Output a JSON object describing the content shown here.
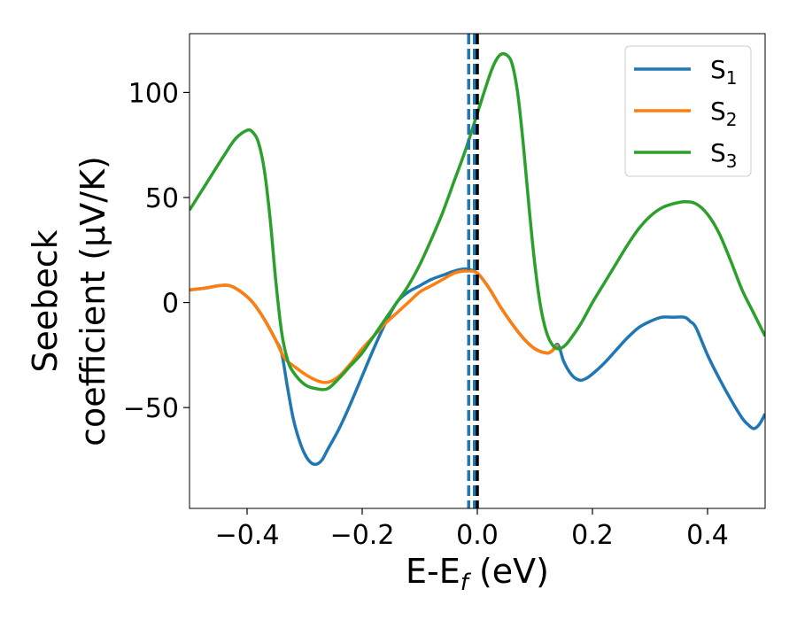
{
  "chart_data": {
    "type": "line",
    "title": "",
    "xlabel": {
      "main": "E-E",
      "sub": "f",
      "suffix": " (eV)"
    },
    "ylabel": {
      "line1": "Seebeck",
      "line2": "coefficient  (μV/K)"
    },
    "xlim": [
      -0.5,
      0.5
    ],
    "ylim": [
      -98,
      128
    ],
    "xticks": [
      -0.4,
      -0.2,
      0.0,
      0.2,
      0.4
    ],
    "xtick_labels": [
      "−0.4",
      "−0.2",
      "0.0",
      "0.2",
      "0.4"
    ],
    "yticks": [
      -50,
      0,
      50,
      100
    ],
    "ytick_labels": [
      "−50",
      "0",
      "50",
      "100"
    ],
    "grid": false,
    "legend_position": "top-right",
    "vlines": [
      {
        "x": -0.015,
        "style": "dashed",
        "color": "#1f77b4"
      },
      {
        "x": -0.005,
        "style": "dashed",
        "color": "#1f77b4"
      },
      {
        "x": 0.0,
        "style": "dashed",
        "color": "#000000"
      }
    ],
    "series": [
      {
        "name": "S",
        "sub": "1",
        "color": "#1f77b4",
        "x": [
          -0.5,
          -0.47,
          -0.45,
          -0.43,
          -0.41,
          -0.39,
          -0.37,
          -0.35,
          -0.34,
          -0.33,
          -0.32,
          -0.31,
          -0.3,
          -0.29,
          -0.28,
          -0.27,
          -0.26,
          -0.24,
          -0.22,
          -0.2,
          -0.18,
          -0.16,
          -0.14,
          -0.12,
          -0.1,
          -0.08,
          -0.06,
          -0.04,
          -0.02,
          0.0,
          0.02,
          0.04,
          0.06,
          0.08,
          0.1,
          0.12,
          0.13,
          0.14,
          0.15,
          0.16,
          0.17,
          0.18,
          0.19,
          0.2,
          0.22,
          0.24,
          0.26,
          0.28,
          0.3,
          0.32,
          0.34,
          0.36,
          0.37,
          0.38,
          0.4,
          0.42,
          0.44,
          0.46,
          0.47,
          0.48,
          0.49,
          0.5
        ],
        "y": [
          6,
          7,
          8,
          8,
          5,
          0,
          -8,
          -18,
          -24,
          -40,
          -55,
          -65,
          -72,
          -76,
          -77,
          -75,
          -70,
          -60,
          -48,
          -35,
          -22,
          -10,
          0,
          5,
          8,
          11,
          13,
          15,
          16,
          14,
          7,
          -2,
          -10,
          -17,
          -22,
          -24,
          -23,
          -20,
          -28,
          -33,
          -36,
          -37,
          -36,
          -34,
          -29,
          -23,
          -17,
          -12,
          -9,
          -7,
          -7,
          -7,
          -9,
          -12,
          -25,
          -36,
          -46,
          -55,
          -58,
          -60,
          -58,
          -53
        ]
      },
      {
        "name": "S",
        "sub": "2",
        "color": "#ff7f0e",
        "x": [
          -0.5,
          -0.47,
          -0.45,
          -0.43,
          -0.41,
          -0.39,
          -0.37,
          -0.35,
          -0.34,
          -0.33,
          -0.32,
          -0.3,
          -0.28,
          -0.26,
          -0.24,
          -0.22,
          -0.2,
          -0.18,
          -0.16,
          -0.14,
          -0.12,
          -0.1,
          -0.08,
          -0.06,
          -0.04,
          -0.02,
          0.0,
          0.02,
          0.04,
          0.06,
          0.08,
          0.1,
          0.12,
          0.13,
          0.14
        ],
        "y": [
          6,
          7,
          8,
          8,
          5,
          0,
          -8,
          -18,
          -24,
          -28,
          -30,
          -34,
          -37,
          -38,
          -35,
          -29,
          -22,
          -16,
          -10,
          -5,
          0,
          5,
          8,
          11,
          14,
          15,
          14,
          7,
          -2,
          -10,
          -17,
          -22,
          -24,
          -23,
          -20
        ]
      },
      {
        "name": "S",
        "sub": "3",
        "color": "#2ca02c",
        "x": [
          -0.5,
          -0.47,
          -0.44,
          -0.42,
          -0.4,
          -0.39,
          -0.38,
          -0.37,
          -0.36,
          -0.35,
          -0.34,
          -0.33,
          -0.32,
          -0.3,
          -0.28,
          -0.26,
          -0.24,
          -0.22,
          -0.2,
          -0.18,
          -0.16,
          -0.14,
          -0.12,
          -0.1,
          -0.08,
          -0.06,
          -0.04,
          -0.02,
          0.0,
          0.02,
          0.03,
          0.04,
          0.05,
          0.06,
          0.07,
          0.08,
          0.09,
          0.1,
          0.11,
          0.12,
          0.13,
          0.14,
          0.15,
          0.16,
          0.18,
          0.2,
          0.22,
          0.24,
          0.26,
          0.28,
          0.3,
          0.32,
          0.34,
          0.36,
          0.38,
          0.4,
          0.42,
          0.44,
          0.46,
          0.48,
          0.5
        ],
        "y": [
          44,
          57,
          70,
          78,
          82,
          81,
          76,
          63,
          40,
          10,
          -14,
          -27,
          -33,
          -39,
          -41,
          -41,
          -36,
          -30,
          -24,
          -16,
          -8,
          0,
          8,
          18,
          30,
          43,
          58,
          73,
          90,
          107,
          114,
          118,
          118,
          114,
          100,
          75,
          45,
          18,
          -2,
          -14,
          -20,
          -22,
          -21,
          -18,
          -10,
          0,
          9,
          18,
          27,
          35,
          41,
          45,
          47,
          48,
          47,
          42,
          33,
          20,
          6,
          -5,
          -16
        ]
      }
    ]
  }
}
